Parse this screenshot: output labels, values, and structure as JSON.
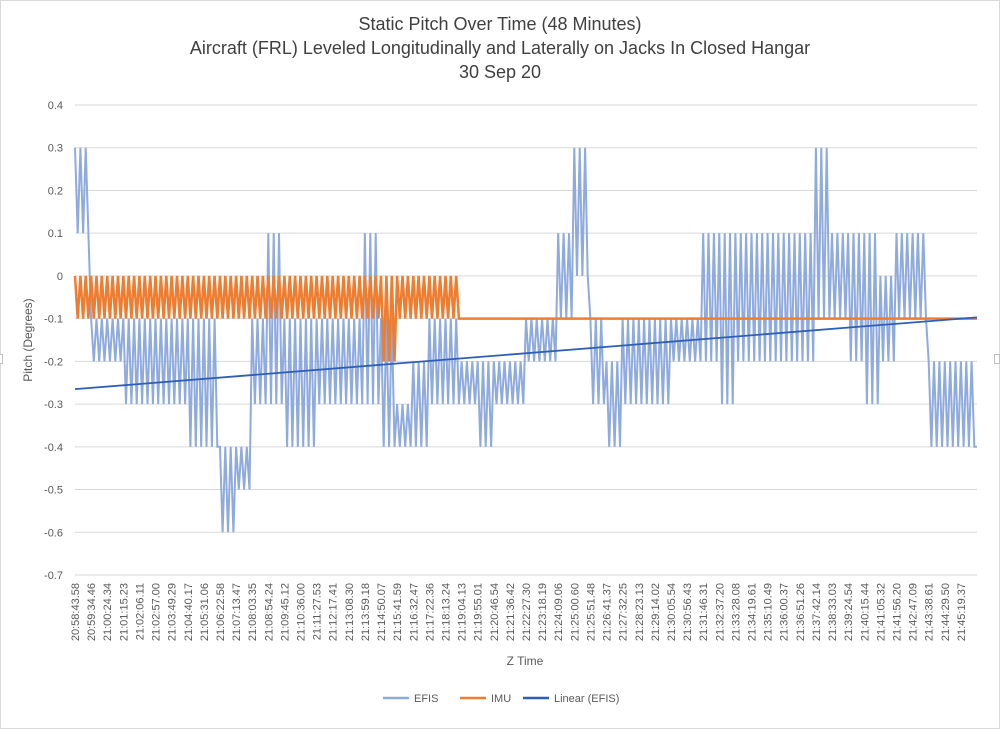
{
  "colors": {
    "efis": "#8faadc",
    "imu": "#ed7d31",
    "linear": "#2e5fb8",
    "grid": "#d9d9d9",
    "text": "#595959"
  },
  "chart_data": {
    "type": "line",
    "title": "Static Pitch Over Time (48 Minutes)",
    "subtitle": "Aircraft (FRL) Leveled Longitudinally and Laterally  on Jacks In Closed Hangar",
    "date": "30 Sep 20",
    "xlabel": "Z Time",
    "ylabel": "Pitch (Degrees)",
    "ylim": [
      -0.7,
      0.4
    ],
    "yticks": [
      "0.4",
      "0.3",
      "0.2",
      "0.1",
      "0",
      "-0.1",
      "-0.2",
      "-0.3",
      "-0.4",
      "-0.5",
      "-0.6",
      "-0.7"
    ],
    "grid": true,
    "legend_position": "bottom",
    "categories": [
      "20:58:43.58",
      "20:59:34.46",
      "21:00:24.34",
      "21:01:15.23",
      "21:02:06.11",
      "21:02:57.00",
      "21:03:49.29",
      "21:04:40.17",
      "21:05:31.06",
      "21:06:22.58",
      "21:07:13.47",
      "21:08:03.35",
      "21:08:54.24",
      "21:09:45.12",
      "21:10:36.00",
      "21:11:27.53",
      "21:12:17.41",
      "21:13:08.30",
      "21:13:59.18",
      "21:14:50.07",
      "21:15:41.59",
      "21:16:32.47",
      "21:17:22.36",
      "21:18:13.24",
      "21:19:04.13",
      "21:19:55.01",
      "21:20:46.54",
      "21:21:36.42",
      "21:22:27.30",
      "21:23:18.19",
      "21:24:09.06",
      "21:25:00.60",
      "21:25:51.48",
      "21:26:41.37",
      "21:27:32.25",
      "21:28:23.13",
      "21:29:14.02",
      "21:30:05.54",
      "21:30:56.43",
      "21:31:46.31",
      "21:32:37.20",
      "21:33:28.08",
      "21:34:19.61",
      "21:35:10.49",
      "21:36:00.37",
      "21:36:51.26",
      "21:37:42.14",
      "21:38:33.03",
      "21:39:24.54",
      "21:40:15.44",
      "21:41:05.32",
      "21:41:56.20",
      "21:42:47.09",
      "21:43:38.61",
      "21:44:29.50",
      "21:45:19.37"
    ],
    "series": [
      {
        "name": "EFIS",
        "style": "band",
        "low": [
          0.1,
          -0.2,
          -0.2,
          -0.3,
          -0.3,
          -0.3,
          -0.3,
          -0.4,
          -0.4,
          -0.6,
          -0.5,
          -0.3,
          -0.3,
          -0.4,
          -0.4,
          -0.3,
          -0.3,
          -0.3,
          -0.3,
          -0.4,
          -0.4,
          -0.4,
          -0.3,
          -0.3,
          -0.3,
          -0.4,
          -0.3,
          -0.3,
          -0.2,
          -0.2,
          -0.1,
          0.0,
          -0.3,
          -0.4,
          -0.3,
          -0.3,
          -0.3,
          -0.2,
          -0.2,
          -0.2,
          -0.3,
          -0.2,
          -0.2,
          -0.2,
          -0.2,
          -0.2,
          -0.1,
          -0.1,
          -0.2,
          -0.3,
          -0.2,
          -0.1,
          -0.1,
          -0.4,
          -0.4,
          -0.4
        ],
        "high": [
          0.3,
          -0.1,
          -0.1,
          -0.1,
          -0.1,
          -0.1,
          -0.1,
          -0.1,
          -0.1,
          -0.4,
          -0.4,
          -0.1,
          0.1,
          -0.1,
          -0.1,
          -0.1,
          -0.1,
          -0.1,
          0.1,
          -0.1,
          -0.3,
          -0.2,
          -0.1,
          -0.1,
          -0.2,
          -0.2,
          -0.2,
          -0.2,
          -0.1,
          -0.1,
          0.1,
          0.3,
          -0.1,
          -0.2,
          -0.1,
          -0.1,
          -0.1,
          -0.1,
          -0.1,
          0.1,
          0.1,
          0.1,
          0.1,
          0.1,
          0.1,
          0.1,
          0.3,
          0.1,
          0.1,
          0.1,
          0.0,
          0.1,
          0.1,
          -0.2,
          -0.2,
          -0.2
        ]
      },
      {
        "name": "IMU",
        "style": "band",
        "low": [
          -0.1,
          -0.1,
          -0.1,
          -0.1,
          -0.1,
          -0.1,
          -0.1,
          -0.1,
          -0.1,
          -0.1,
          -0.1,
          -0.1,
          -0.1,
          -0.1,
          -0.1,
          -0.1,
          -0.1,
          -0.1,
          -0.1,
          -0.2,
          -0.1,
          -0.1,
          -0.1,
          -0.1,
          -0.1,
          -0.1,
          -0.1,
          -0.1,
          -0.1,
          -0.1,
          -0.1,
          -0.1,
          -0.1,
          -0.1,
          -0.1,
          -0.1,
          -0.1,
          -0.1,
          -0.1,
          -0.1,
          -0.1,
          -0.1,
          -0.1,
          -0.1,
          -0.1,
          -0.1,
          -0.1,
          -0.1,
          -0.1,
          -0.1,
          -0.1,
          -0.1,
          -0.1,
          -0.1,
          -0.1,
          -0.1
        ],
        "high": [
          0,
          0,
          0,
          0,
          0,
          0,
          0,
          0,
          0,
          0,
          0,
          0,
          0,
          0,
          0,
          0,
          0,
          0,
          0,
          0,
          0,
          0,
          0,
          0,
          -0.1,
          -0.1,
          -0.1,
          -0.1,
          -0.1,
          -0.1,
          -0.1,
          -0.1,
          -0.1,
          -0.1,
          -0.1,
          -0.1,
          -0.1,
          -0.1,
          -0.1,
          -0.1,
          -0.1,
          -0.1,
          -0.1,
          -0.1,
          -0.1,
          -0.1,
          -0.1,
          -0.1,
          -0.1,
          -0.1,
          -0.1,
          -0.1,
          -0.1,
          -0.1,
          -0.1,
          -0.1
        ]
      },
      {
        "name": "Linear (EFIS)",
        "style": "trendline",
        "start": -0.265,
        "end": -0.097
      }
    ],
    "legend": [
      "EFIS",
      "IMU",
      "Linear (EFIS)"
    ]
  }
}
